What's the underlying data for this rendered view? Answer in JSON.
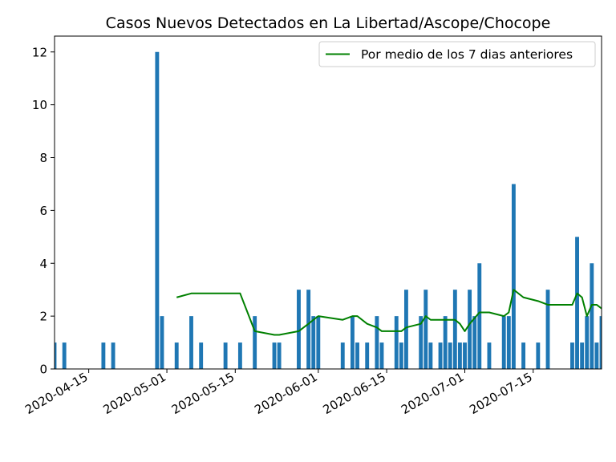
{
  "chart_data": {
    "type": "bar",
    "title": "Casos Nuevos Detectados en La Libertad/Ascope/Chocope",
    "xlabel": "",
    "ylabel": "",
    "ylim": [
      0,
      12.6
    ],
    "xlim": [
      "2020-04-08",
      "2020-07-29"
    ],
    "yticks": [
      0,
      2,
      4,
      6,
      8,
      10,
      12
    ],
    "xticks": [
      "2020-04-15",
      "2020-05-01",
      "2020-05-15",
      "2020-06-01",
      "2020-06-15",
      "2020-07-01",
      "2020-07-15"
    ],
    "legend": {
      "position": "top-right"
    },
    "grid": false,
    "colors": {
      "bars": "#1f77b4",
      "line": "#008000"
    },
    "series": [
      {
        "type": "bar",
        "points": [
          [
            "2020-04-08",
            1
          ],
          [
            "2020-04-10",
            1
          ],
          [
            "2020-04-18",
            1
          ],
          [
            "2020-04-20",
            1
          ],
          [
            "2020-04-29",
            12
          ],
          [
            "2020-04-30",
            2
          ],
          [
            "2020-05-03",
            1
          ],
          [
            "2020-05-06",
            2
          ],
          [
            "2020-05-08",
            1
          ],
          [
            "2020-05-13",
            1
          ],
          [
            "2020-05-16",
            1
          ],
          [
            "2020-05-19",
            2
          ],
          [
            "2020-05-23",
            1
          ],
          [
            "2020-05-24",
            1
          ],
          [
            "2020-05-28",
            3
          ],
          [
            "2020-05-30",
            3
          ],
          [
            "2020-05-31",
            2
          ],
          [
            "2020-06-01",
            2
          ],
          [
            "2020-06-06",
            1
          ],
          [
            "2020-06-08",
            2
          ],
          [
            "2020-06-09",
            1
          ],
          [
            "2020-06-11",
            1
          ],
          [
            "2020-06-13",
            2
          ],
          [
            "2020-06-14",
            1
          ],
          [
            "2020-06-17",
            2
          ],
          [
            "2020-06-18",
            1
          ],
          [
            "2020-06-19",
            3
          ],
          [
            "2020-06-22",
            2
          ],
          [
            "2020-06-23",
            3
          ],
          [
            "2020-06-24",
            1
          ],
          [
            "2020-06-26",
            1
          ],
          [
            "2020-06-27",
            2
          ],
          [
            "2020-06-28",
            1
          ],
          [
            "2020-06-29",
            3
          ],
          [
            "2020-06-30",
            1
          ],
          [
            "2020-07-01",
            1
          ],
          [
            "2020-07-02",
            3
          ],
          [
            "2020-07-03",
            2
          ],
          [
            "2020-07-04",
            4
          ],
          [
            "2020-07-06",
            1
          ],
          [
            "2020-07-09",
            2
          ],
          [
            "2020-07-10",
            2
          ],
          [
            "2020-07-11",
            7
          ],
          [
            "2020-07-13",
            1
          ],
          [
            "2020-07-16",
            1
          ],
          [
            "2020-07-18",
            3
          ],
          [
            "2020-07-23",
            1
          ],
          [
            "2020-07-24",
            5
          ],
          [
            "2020-07-25",
            1
          ],
          [
            "2020-07-26",
            2
          ],
          [
            "2020-07-27",
            4
          ],
          [
            "2020-07-28",
            1
          ],
          [
            "2020-07-29",
            2
          ],
          [
            "2020-07-30",
            2
          ]
        ]
      },
      {
        "type": "line",
        "name": "Por medio de los 7 dias anteriores",
        "points": [
          [
            "2020-05-03",
            2.71
          ],
          [
            "2020-05-06",
            2.86
          ],
          [
            "2020-05-16",
            2.86
          ],
          [
            "2020-05-19",
            1.43
          ],
          [
            "2020-05-23",
            1.29
          ],
          [
            "2020-05-24",
            1.29
          ],
          [
            "2020-05-28",
            1.43
          ],
          [
            "2020-05-30",
            1.71
          ],
          [
            "2020-05-31",
            1.86
          ],
          [
            "2020-06-01",
            2.0
          ],
          [
            "2020-06-06",
            1.86
          ],
          [
            "2020-06-08",
            2.0
          ],
          [
            "2020-06-09",
            2.0
          ],
          [
            "2020-06-11",
            1.71
          ],
          [
            "2020-06-13",
            1.57
          ],
          [
            "2020-06-14",
            1.43
          ],
          [
            "2020-06-17",
            1.43
          ],
          [
            "2020-06-18",
            1.43
          ],
          [
            "2020-06-19",
            1.57
          ],
          [
            "2020-06-22",
            1.71
          ],
          [
            "2020-06-23",
            2.0
          ],
          [
            "2020-06-24",
            1.86
          ],
          [
            "2020-06-26",
            1.86
          ],
          [
            "2020-06-27",
            1.86
          ],
          [
            "2020-06-28",
            1.86
          ],
          [
            "2020-06-29",
            1.86
          ],
          [
            "2020-06-30",
            1.71
          ],
          [
            "2020-07-01",
            1.43
          ],
          [
            "2020-07-02",
            1.71
          ],
          [
            "2020-07-04",
            2.14
          ],
          [
            "2020-07-06",
            2.14
          ],
          [
            "2020-07-09",
            2.0
          ],
          [
            "2020-07-10",
            2.14
          ],
          [
            "2020-07-11",
            3.0
          ],
          [
            "2020-07-13",
            2.71
          ],
          [
            "2020-07-16",
            2.57
          ],
          [
            "2020-07-18",
            2.43
          ],
          [
            "2020-07-23",
            2.43
          ],
          [
            "2020-07-24",
            2.86
          ],
          [
            "2020-07-25",
            2.71
          ],
          [
            "2020-07-26",
            2.0
          ],
          [
            "2020-07-27",
            2.43
          ],
          [
            "2020-07-28",
            2.43
          ],
          [
            "2020-07-29",
            2.29
          ],
          [
            "2020-07-30",
            2.43
          ]
        ]
      }
    ]
  }
}
